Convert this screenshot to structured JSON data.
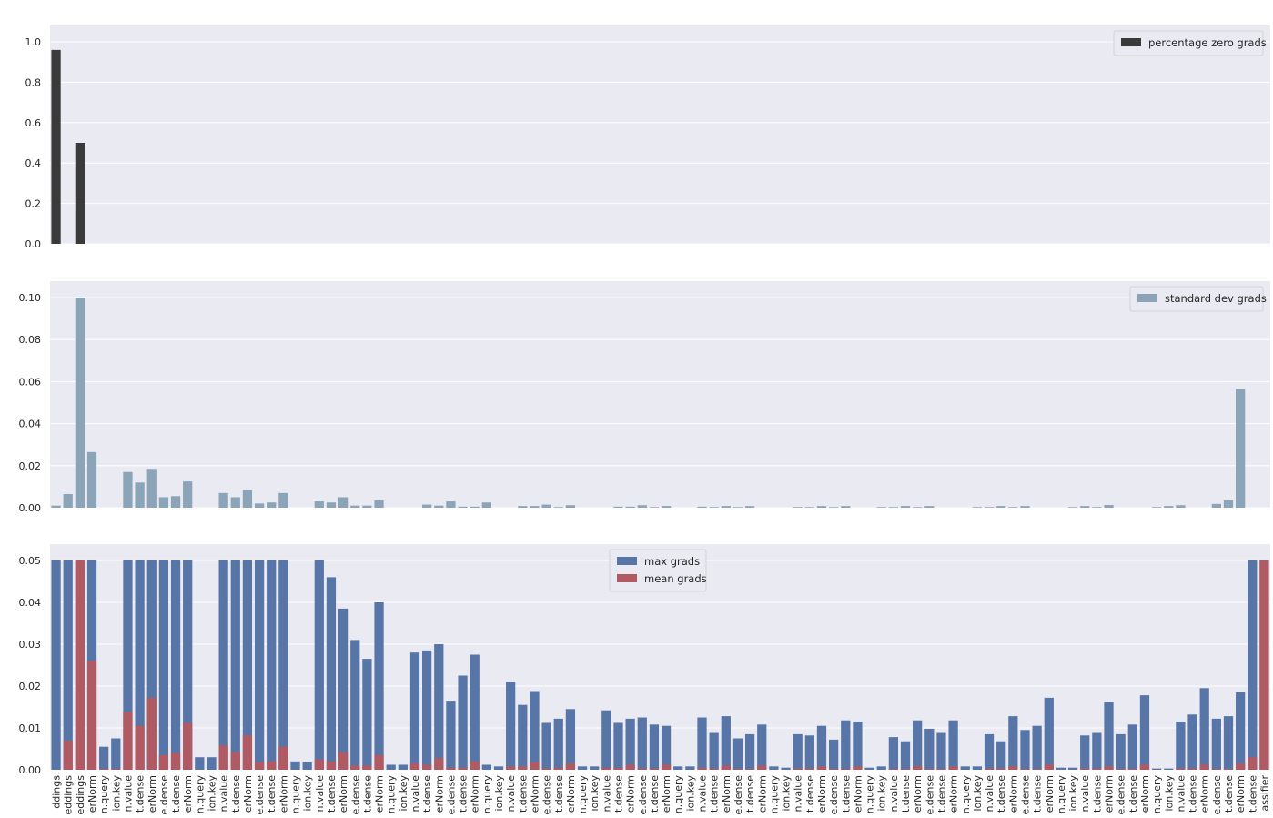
{
  "chart_data": [
    {
      "type": "bar",
      "legend": [
        "percentage zero grads"
      ],
      "legend_position": "top-right",
      "grid": true,
      "ylim": [
        0,
        1.0
      ],
      "yticks": [
        0.0,
        0.2,
        0.4,
        0.6,
        0.8,
        1.0
      ],
      "yticklabels": [
        "0.0",
        "0.2",
        "0.4",
        "0.6",
        "0.8",
        "1.0"
      ],
      "color": "#3a3a3a",
      "series": [
        {
          "name": "percentage zero grads",
          "values": [
            0.96,
            0,
            0.5,
            0,
            0,
            0,
            0,
            0,
            0,
            0,
            0,
            0,
            0,
            0,
            0,
            0,
            0,
            0,
            0,
            0,
            0,
            0,
            0,
            0,
            0,
            0,
            0,
            0,
            0,
            0,
            0,
            0,
            0,
            0,
            0,
            0,
            0,
            0,
            0,
            0,
            0,
            0,
            0,
            0,
            0,
            0,
            0,
            0,
            0,
            0,
            0,
            0,
            0,
            0,
            0,
            0,
            0,
            0,
            0,
            0,
            0,
            0,
            0,
            0,
            0,
            0,
            0,
            0,
            0,
            0,
            0,
            0,
            0,
            0,
            0,
            0,
            0,
            0,
            0,
            0,
            0,
            0,
            0,
            0,
            0,
            0,
            0,
            0,
            0,
            0,
            0,
            0,
            0,
            0,
            0,
            0,
            0,
            0,
            0,
            0,
            0,
            0,
            0
          ]
        }
      ]
    },
    {
      "type": "bar",
      "legend": [
        "standard dev grads"
      ],
      "legend_position": "top-right",
      "grid": true,
      "ylim": [
        0,
        0.1
      ],
      "yticks": [
        0.0,
        0.02,
        0.04,
        0.06,
        0.08,
        0.1
      ],
      "yticklabels": [
        "0.00",
        "0.02",
        "0.04",
        "0.06",
        "0.08",
        "0.10"
      ],
      "color": "#8ba4b8",
      "series": [
        {
          "name": "standard dev grads",
          "values": [
            0.001,
            0.0065,
            0.1,
            0.0265,
            0,
            0,
            0.017,
            0.012,
            0.0185,
            0.005,
            0.0055,
            0.0125,
            0,
            0,
            0.007,
            0.005,
            0.0085,
            0.002,
            0.0025,
            0.007,
            0,
            0,
            0.003,
            0.0025,
            0.005,
            0.001,
            0.001,
            0.0035,
            0,
            0,
            0,
            0.0015,
            0.001,
            0.003,
            0.0005,
            0.0005,
            0.0025,
            0,
            0,
            0.0008,
            0.0008,
            0.0015,
            0.0003,
            0.0012,
            0,
            0,
            0,
            0.0005,
            0.0005,
            0.0012,
            0.0003,
            0.0008,
            0,
            0,
            0.0005,
            0.0003,
            0.0008,
            0.0003,
            0.0008,
            0,
            0,
            0,
            0.0003,
            0.0003,
            0.0008,
            0.0003,
            0.0008,
            0,
            0,
            0.0003,
            0.0003,
            0.0008,
            0.0003,
            0.0008,
            0,
            0,
            0,
            0.0003,
            0.0003,
            0.0008,
            0.0003,
            0.0008,
            0,
            0,
            0,
            0.0003,
            0.0008,
            0.0003,
            0.0013,
            0,
            0,
            0,
            0.0003,
            0.0008,
            0.0012,
            0,
            0,
            0.0018,
            0.0035,
            0.0565
          ]
        }
      ]
    },
    {
      "type": "bar",
      "legend": [
        "max grads",
        "mean grads"
      ],
      "legend_position": "top-center",
      "grid": true,
      "ylim": [
        0,
        0.05
      ],
      "yticks": [
        0.0,
        0.01,
        0.02,
        0.03,
        0.04,
        0.05
      ],
      "yticklabels": [
        "0.00",
        "0.01",
        "0.02",
        "0.03",
        "0.04",
        "0.05"
      ],
      "series": [
        {
          "name": "max grads",
          "color": "#5875a8",
          "values": [
            0.05,
            0.05,
            0.05,
            0.05,
            0.0055,
            0.0075,
            0.05,
            0.05,
            0.05,
            0.05,
            0.05,
            0.05,
            0.003,
            0.003,
            0.05,
            0.05,
            0.05,
            0.05,
            0.05,
            0.05,
            0.002,
            0.0018,
            0.05,
            0.046,
            0.0385,
            0.031,
            0.0265,
            0.04,
            0.0012,
            0.0012,
            0.028,
            0.0285,
            0.03,
            0.0165,
            0.0225,
            0.0275,
            0.0012,
            0.0008,
            0.021,
            0.0155,
            0.0188,
            0.0112,
            0.0122,
            0.0145,
            0.0008,
            0.0008,
            0.0142,
            0.0112,
            0.0122,
            0.0125,
            0.0108,
            0.0105,
            0.0008,
            0.0008,
            0.0125,
            0.0088,
            0.0128,
            0.0075,
            0.0085,
            0.0108,
            0.0008,
            0.0005,
            0.0085,
            0.0082,
            0.0105,
            0.0072,
            0.0118,
            0.0115,
            0.0005,
            0.0008,
            0.0078,
            0.0068,
            0.0118,
            0.0098,
            0.0088,
            0.0118,
            0.0008,
            0.0008,
            0.0085,
            0.0068,
            0.0128,
            0.0095,
            0.0105,
            0.0172,
            0.0005,
            0.0005,
            0.0082,
            0.0088,
            0.0162,
            0.0085,
            0.0108,
            0.0178,
            0.0003,
            0.0003,
            0.0115,
            0.0132,
            0.0195,
            0.0122,
            0.0128,
            0.0185,
            0.05,
            0.05
          ]
        },
        {
          "name": "mean grads",
          "color": "#b05a64",
          "values": [
            0,
            0.007,
            0.05,
            0.026,
            0.0002,
            0.0002,
            0.0138,
            0.0105,
            0.0172,
            0.0035,
            0.004,
            0.0112,
            0,
            0,
            0.0058,
            0.0042,
            0.0082,
            0.0018,
            0.002,
            0.0055,
            0,
            0,
            0.0025,
            0.002,
            0.0042,
            0.001,
            0.001,
            0.0035,
            0,
            0,
            0.0015,
            0.0012,
            0.0028,
            0.0005,
            0.0005,
            0.002,
            0,
            0,
            0.0008,
            0.0008,
            0.0018,
            0.0003,
            0.0005,
            0.0015,
            0,
            0,
            0.0005,
            0.0005,
            0.0012,
            0.0003,
            0.0003,
            0.0012,
            0,
            0,
            0.0005,
            0.0003,
            0.001,
            0.0002,
            0.0002,
            0.001,
            0,
            0,
            0.0003,
            0.0003,
            0.0008,
            0.0002,
            0.0002,
            0.0008,
            0,
            0,
            0.0002,
            0.0002,
            0.0008,
            0.0002,
            0.0002,
            0.0008,
            0,
            0,
            0.0003,
            0.0003,
            0.0008,
            0.0002,
            0.0002,
            0.0012,
            0,
            0,
            0.0003,
            0.0003,
            0.0008,
            0.0002,
            0.0002,
            0.0012,
            0,
            0,
            0.0003,
            0.0003,
            0.0012,
            0.0002,
            0.0002,
            0.0015,
            0.003,
            0.05
          ]
        }
      ]
    }
  ],
  "xticklabels": [
    "ddings",
    "eddings",
    "eddings",
    "erNorm",
    "n.query",
    "ion.key",
    "n.value",
    "t.dense",
    "erNorm",
    "e.dense",
    "t.dense",
    "erNorm",
    "n.query",
    "ion.key",
    "n.value",
    "t.dense",
    "erNorm",
    "e.dense",
    "t.dense",
    "erNorm",
    "n.query",
    "ion.key",
    "n.value",
    "t.dense",
    "erNorm",
    "e.dense",
    "t.dense",
    "erNorm",
    "n.query",
    "ion.key",
    "n.value",
    "t.dense",
    "erNorm",
    "e.dense",
    "t.dense",
    "erNorm",
    "n.query",
    "ion.key",
    "n.value",
    "t.dense",
    "erNorm",
    "e.dense",
    "t.dense",
    "erNorm",
    "n.query",
    "ion.key",
    "n.value",
    "t.dense",
    "erNorm",
    "e.dense",
    "t.dense",
    "erNorm",
    "n.query",
    "ion.key",
    "n.value",
    "t.dense",
    "erNorm",
    "e.dense",
    "t.dense",
    "erNorm",
    "n.query",
    "ion.key",
    "n.value",
    "t.dense",
    "erNorm",
    "e.dense",
    "t.dense",
    "erNorm",
    "n.query",
    "ion.key",
    "n.value",
    "t.dense",
    "erNorm",
    "e.dense",
    "t.dense",
    "erNorm",
    "n.query",
    "ion.key",
    "n.value",
    "t.dense",
    "erNorm",
    "e.dense",
    "t.dense",
    "erNorm",
    "n.query",
    "ion.key",
    "n.value",
    "t.dense",
    "erNorm",
    "e.dense",
    "t.dense",
    "erNorm",
    "n.query",
    "ion.key",
    "n.value",
    "t.dense",
    "erNorm",
    "e.dense",
    "t.dense",
    "erNorm",
    "t.dense",
    "assifier"
  ],
  "colors": {
    "background": "#eaeaf2",
    "grid": "#ffffff",
    "zero_bar": "#3a3a3a",
    "std_bar": "#8ba4b8",
    "max_bar": "#5875a8",
    "mean_bar": "#b05a64"
  }
}
